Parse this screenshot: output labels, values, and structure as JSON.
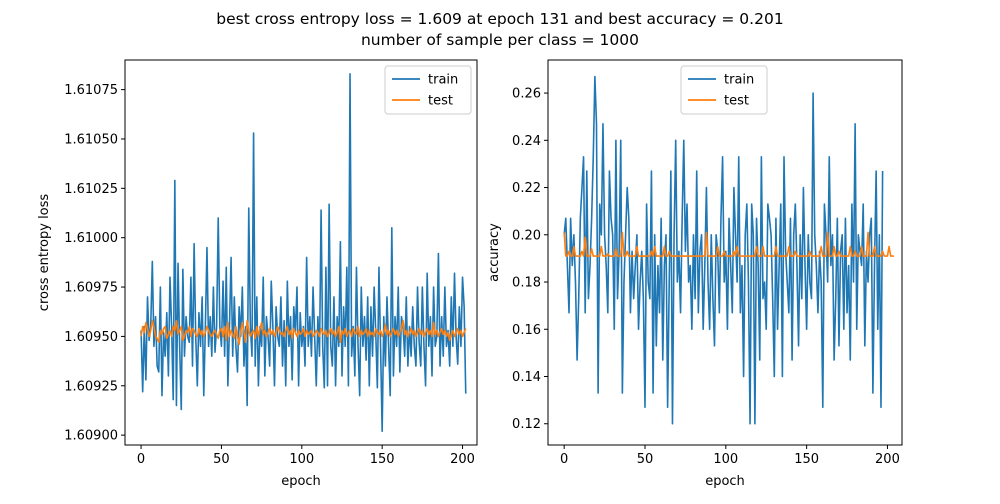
{
  "figure": {
    "title_line1": "best cross entropy loss = 1.609 at epoch 131 and best accuracy = 0.201",
    "title_line2": "number of sample per class = 1000"
  },
  "chart_data": [
    {
      "type": "line",
      "xlabel": "epoch",
      "ylabel": "cross entropy loss",
      "xlim": [
        -10,
        209
      ],
      "ylim": [
        1.60895,
        1.6109
      ],
      "xticks": [
        0,
        50,
        100,
        150,
        200
      ],
      "yticks": [
        1.609,
        1.60925,
        1.6095,
        1.60975,
        1.61,
        1.61025,
        1.6105,
        1.61075
      ],
      "ytick_labels": [
        "1.60900",
        "1.60925",
        "1.60950",
        "1.60975",
        "1.61000",
        "1.61025",
        "1.61050",
        "1.61075"
      ],
      "legend_position": "top-right",
      "series": [
        {
          "name": "train",
          "color": "#1f77b4",
          "values": [
            1.60953,
            1.60922,
            1.60955,
            1.60928,
            1.6097,
            1.60948,
            1.60955,
            1.60988,
            1.60945,
            1.6096,
            1.60935,
            1.60932,
            1.60975,
            1.6092,
            1.60952,
            1.6094,
            1.60962,
            1.6093,
            1.6098,
            1.60955,
            1.60918,
            1.61029,
            1.60915,
            1.60987,
            1.60945,
            1.60913,
            1.60984,
            1.6094,
            1.6096,
            1.6095,
            1.60947,
            1.6098,
            1.60935,
            1.60997,
            1.6095,
            1.60925,
            1.60962,
            1.60945,
            1.6097,
            1.6092,
            1.60955,
            1.60995,
            1.60945,
            1.6096,
            1.6094,
            1.60975,
            1.60942,
            1.60955,
            1.6101,
            1.60955,
            1.60945,
            1.60978,
            1.6094,
            1.60985,
            1.60925,
            1.60955,
            1.6099,
            1.6094,
            1.6097,
            1.60945,
            1.60932,
            1.60965,
            1.6095,
            1.60975,
            1.60935,
            1.60955,
            1.60915,
            1.61015,
            1.60955,
            1.6094,
            1.61053,
            1.60935,
            1.6097,
            1.60925,
            1.60955,
            1.60945,
            1.6098,
            1.6093,
            1.6096,
            1.6095,
            1.60935,
            1.60978,
            1.60955,
            1.60925,
            1.60965,
            1.6095,
            1.60945,
            1.6097,
            1.60935,
            1.60958,
            1.60925,
            1.60978,
            1.60945,
            1.6096,
            1.60928,
            1.60965,
            1.60952,
            1.60975,
            1.60925,
            1.60962,
            1.60945,
            1.60955,
            1.60935,
            1.6099,
            1.60945,
            1.6096,
            1.6094,
            1.60975,
            1.6095,
            1.60925,
            1.6096,
            1.6094,
            1.61014,
            1.60945,
            1.60924,
            1.60985,
            1.60925,
            1.61017,
            1.60945,
            1.60935,
            1.6097,
            1.60925,
            1.6096,
            1.60945,
            1.60998,
            1.6093,
            1.60965,
            1.60945,
            1.60985,
            1.60925,
            1.61083,
            1.6094,
            1.60955,
            1.6093,
            1.60985,
            1.60945,
            1.6092,
            1.60975,
            1.60945,
            1.6096,
            1.60938,
            1.6097,
            1.60925,
            1.60965,
            1.6094,
            1.60975,
            1.60952,
            1.60924,
            1.60985,
            1.60945,
            1.60902,
            1.6096,
            1.60935,
            1.6097,
            1.60945,
            1.6092,
            1.61005,
            1.6093,
            1.6096,
            1.60945,
            1.60975,
            1.60932,
            1.6096,
            1.60955,
            1.6094,
            1.6097,
            1.60935,
            1.60955,
            1.6094,
            1.60965,
            1.60945,
            1.60935,
            1.60975,
            1.60947,
            1.60935,
            1.60975,
            1.60945,
            1.60925,
            1.60982,
            1.60945,
            1.6096,
            1.6093,
            1.60975,
            1.60945,
            1.6095,
            1.60992,
            1.60935,
            1.6096,
            1.6094,
            1.60975,
            1.60945,
            1.60953,
            1.60935,
            1.6097,
            1.60945,
            1.60982,
            1.6095,
            1.60936,
            1.60965,
            1.60945,
            1.6098,
            1.60965,
            1.60921
          ]
        },
        {
          "name": "test",
          "color": "#ff7f0e",
          "values": [
            1.6095,
            1.60955,
            1.60952,
            1.60957,
            1.60954,
            1.6095,
            1.60953,
            1.60958,
            1.60955,
            1.6095,
            1.60949,
            1.60947,
            1.60953,
            1.60951,
            1.60954,
            1.60955,
            1.60949,
            1.60951,
            1.60953,
            1.6095,
            1.60955,
            1.60953,
            1.60958,
            1.60951,
            1.60953,
            1.60955,
            1.60948,
            1.6095,
            1.60953,
            1.60952,
            1.60955,
            1.6095,
            1.60954,
            1.60953,
            1.60951,
            1.6095,
            1.60954,
            1.60951,
            1.60953,
            1.6095,
            1.60952,
            1.60955,
            1.60953,
            1.60951,
            1.6095,
            1.60952,
            1.60953,
            1.60951,
            1.60949,
            1.60953,
            1.60954,
            1.6095,
            1.60955,
            1.60948,
            1.60957,
            1.6095,
            1.60953,
            1.60951,
            1.60949,
            1.60955,
            1.6095,
            1.60946,
            1.60953,
            1.60957,
            1.60952,
            1.60947,
            1.60958,
            1.60953,
            1.6095,
            1.60952,
            1.60953,
            1.60949,
            1.60955,
            1.6095,
            1.60954,
            1.60957,
            1.60951,
            1.60953,
            1.6095,
            1.60952,
            1.60954,
            1.60951,
            1.60953,
            1.6095,
            1.60952,
            1.60955,
            1.60953,
            1.60951,
            1.60952,
            1.6095,
            1.60953,
            1.60955,
            1.60951,
            1.60953,
            1.60949,
            1.60954,
            1.60952,
            1.6095,
            1.60953,
            1.60951,
            1.60952,
            1.60954,
            1.6095,
            1.60953,
            1.60951,
            1.60952,
            1.60953,
            1.6095,
            1.60951,
            1.60953,
            1.60952,
            1.6095,
            1.60954,
            1.60952,
            1.60951,
            1.60953,
            1.6095,
            1.60952,
            1.60954,
            1.60951,
            1.60953,
            1.6095,
            1.60952,
            1.60955,
            1.60947,
            1.60953,
            1.60951,
            1.60954,
            1.6095,
            1.60952,
            1.60953,
            1.6095,
            1.60954,
            1.60952,
            1.60951,
            1.60955,
            1.6095,
            1.60953,
            1.60951,
            1.60952,
            1.60954,
            1.6095,
            1.60953,
            1.60951,
            1.60952,
            1.6095,
            1.60954,
            1.60952,
            1.60951,
            1.60953,
            1.6095,
            1.60952,
            1.60956,
            1.60951,
            1.60953,
            1.6095,
            1.60952,
            1.60954,
            1.60951,
            1.60953,
            1.6095,
            1.60952,
            1.60954,
            1.60958,
            1.60951,
            1.60953,
            1.6095,
            1.60952,
            1.60954,
            1.60951,
            1.60953,
            1.6095,
            1.60952,
            1.60954,
            1.60951,
            1.60953,
            1.6095,
            1.60952,
            1.60954,
            1.60951,
            1.60953,
            1.6095,
            1.60957,
            1.60951,
            1.60953,
            1.6095,
            1.60952,
            1.60954,
            1.60951,
            1.60953,
            1.6095,
            1.60952,
            1.60948,
            1.60951,
            1.60953,
            1.6095,
            1.60952,
            1.60954,
            1.60951,
            1.60953,
            1.6095,
            1.60952,
            1.60954
          ]
        }
      ]
    },
    {
      "type": "line",
      "xlabel": "epoch",
      "ylabel": "accuracy",
      "xlim": [
        -10,
        209
      ],
      "ylim": [
        0.111,
        0.274
      ],
      "xticks": [
        0,
        50,
        100,
        150,
        200
      ],
      "yticks": [
        0.12,
        0.14,
        0.16,
        0.18,
        0.2,
        0.22,
        0.24,
        0.26
      ],
      "ytick_labels": [
        "0.12",
        "0.14",
        "0.16",
        "0.18",
        "0.20",
        "0.22",
        "0.24",
        "0.26"
      ],
      "legend_position": "top-center",
      "series": [
        {
          "name": "train",
          "color": "#1f77b4",
          "values": [
            0.2,
            0.207,
            0.187,
            0.167,
            0.207,
            0.187,
            0.2,
            0.18,
            0.147,
            0.173,
            0.207,
            0.22,
            0.233,
            0.167,
            0.227,
            0.173,
            0.187,
            0.207,
            0.233,
            0.267,
            0.247,
            0.133,
            0.213,
            0.2,
            0.247,
            0.2,
            0.187,
            0.167,
            0.227,
            0.207,
            0.2,
            0.16,
            0.24,
            0.173,
            0.193,
            0.24,
            0.133,
            0.18,
            0.2,
            0.22,
            0.207,
            0.167,
            0.193,
            0.173,
            0.187,
            0.2,
            0.16,
            0.18,
            0.193,
            0.173,
            0.127,
            0.213,
            0.18,
            0.173,
            0.227,
            0.133,
            0.2,
            0.153,
            0.187,
            0.167,
            0.207,
            0.147,
            0.187,
            0.2,
            0.127,
            0.18,
            0.227,
            0.12,
            0.2,
            0.24,
            0.18,
            0.193,
            0.167,
            0.207,
            0.24,
            0.193,
            0.213,
            0.18,
            0.187,
            0.16,
            0.2,
            0.173,
            0.227,
            0.167,
            0.193,
            0.2,
            0.16,
            0.187,
            0.22,
            0.18,
            0.16,
            0.2,
            0.173,
            0.153,
            0.2,
            0.193,
            0.167,
            0.207,
            0.233,
            0.18,
            0.193,
            0.16,
            0.207,
            0.187,
            0.167,
            0.22,
            0.2,
            0.18,
            0.233,
            0.167,
            0.187,
            0.14,
            0.2,
            0.213,
            0.18,
            0.12,
            0.213,
            0.2,
            0.12,
            0.207,
            0.187,
            0.147,
            0.233,
            0.173,
            0.18,
            0.16,
            0.213,
            0.207,
            0.2,
            0.173,
            0.14,
            0.207,
            0.16,
            0.187,
            0.213,
            0.14,
            0.233,
            0.193,
            0.18,
            0.167,
            0.207,
            0.147,
            0.2,
            0.213,
            0.187,
            0.153,
            0.2,
            0.173,
            0.22,
            0.187,
            0.16,
            0.2,
            0.18,
            0.173,
            0.26,
            0.2,
            0.187,
            0.167,
            0.193,
            0.18,
            0.127,
            0.213,
            0.2,
            0.18,
            0.233,
            0.187,
            0.2,
            0.147,
            0.173,
            0.207,
            0.153,
            0.193,
            0.2,
            0.16,
            0.207,
            0.167,
            0.187,
            0.147,
            0.213,
            0.18,
            0.247,
            0.16,
            0.2,
            0.193,
            0.187,
            0.213,
            0.153,
            0.193,
            0.18,
            0.2,
            0.207,
            0.133,
            0.187,
            0.227,
            0.16,
            0.2,
            0.127,
            0.227
          ]
        },
        {
          "name": "test",
          "color": "#ff7f0e",
          "values": [
            0.201,
            0.191,
            0.191,
            0.193,
            0.191,
            0.191,
            0.195,
            0.191,
            0.191,
            0.191,
            0.191,
            0.193,
            0.191,
            0.199,
            0.191,
            0.191,
            0.191,
            0.194,
            0.191,
            0.191,
            0.191,
            0.191,
            0.191,
            0.195,
            0.191,
            0.191,
            0.191,
            0.192,
            0.191,
            0.191,
            0.191,
            0.191,
            0.194,
            0.191,
            0.191,
            0.191,
            0.201,
            0.191,
            0.191,
            0.193,
            0.191,
            0.191,
            0.191,
            0.191,
            0.191,
            0.195,
            0.191,
            0.191,
            0.191,
            0.191,
            0.191,
            0.191,
            0.191,
            0.191,
            0.193,
            0.191,
            0.195,
            0.191,
            0.191,
            0.191,
            0.191,
            0.191,
            0.195,
            0.191,
            0.191,
            0.193,
            0.191,
            0.191,
            0.191,
            0.191,
            0.191,
            0.191,
            0.191,
            0.191,
            0.191,
            0.191,
            0.191,
            0.191,
            0.191,
            0.191,
            0.191,
            0.191,
            0.191,
            0.191,
            0.191,
            0.191,
            0.191,
            0.191,
            0.201,
            0.191,
            0.191,
            0.191,
            0.191,
            0.191,
            0.191,
            0.195,
            0.191,
            0.191,
            0.191,
            0.193,
            0.191,
            0.191,
            0.191,
            0.191,
            0.191,
            0.193,
            0.191,
            0.195,
            0.191,
            0.191,
            0.191,
            0.191,
            0.191,
            0.191,
            0.191,
            0.191,
            0.191,
            0.191,
            0.191,
            0.195,
            0.191,
            0.191,
            0.191,
            0.195,
            0.191,
            0.191,
            0.191,
            0.191,
            0.191,
            0.191,
            0.191,
            0.195,
            0.191,
            0.191,
            0.191,
            0.191,
            0.191,
            0.191,
            0.191,
            0.195,
            0.191,
            0.191,
            0.191,
            0.193,
            0.191,
            0.191,
            0.191,
            0.191,
            0.191,
            0.191,
            0.191,
            0.191,
            0.193,
            0.191,
            0.191,
            0.191,
            0.191,
            0.191,
            0.191,
            0.195,
            0.191,
            0.191,
            0.191,
            0.201,
            0.191,
            0.191,
            0.191,
            0.195,
            0.191,
            0.191,
            0.193,
            0.191,
            0.191,
            0.191,
            0.191,
            0.191,
            0.191,
            0.195,
            0.191,
            0.191,
            0.193,
            0.191,
            0.191,
            0.191,
            0.195,
            0.191,
            0.191,
            0.191,
            0.201,
            0.191,
            0.191,
            0.191,
            0.195,
            0.191,
            0.191,
            0.191,
            0.191,
            0.193,
            0.191,
            0.191,
            0.191,
            0.195,
            0.191,
            0.191,
            0.191
          ]
        }
      ]
    }
  ]
}
